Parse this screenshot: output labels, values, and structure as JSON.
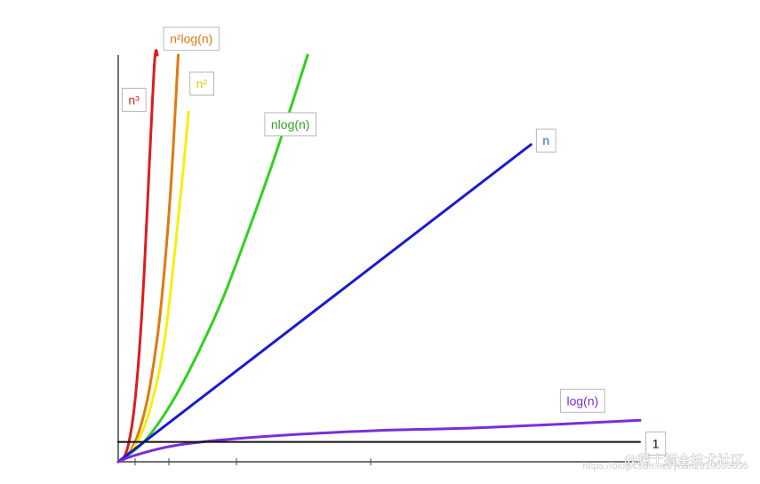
{
  "chart_data": {
    "type": "line",
    "title": "",
    "xlabel": "",
    "ylabel": "",
    "grid": false,
    "legend": "inline-labels",
    "xlim": [
      0,
      100
    ],
    "ylim": [
      0,
      100
    ],
    "series": [
      {
        "name": "n³",
        "color": "#dd1c1c",
        "x": [
          0,
          1,
          2,
          3,
          4,
          5,
          6,
          7,
          7.5
        ],
        "y": [
          0,
          0.8,
          4.5,
          12.5,
          26.5,
          47,
          74,
          99,
          100
        ]
      },
      {
        "name": "n²log(n)",
        "color": "#e07a10",
        "x": [
          0,
          2,
          4,
          6,
          8,
          10,
          11.5
        ],
        "y": [
          0,
          2,
          7.5,
          18,
          36,
          66,
          100
        ]
      },
      {
        "name": "n²",
        "color": "#f5f010",
        "x": [
          0,
          3,
          6,
          9,
          12,
          13.5
        ],
        "y": [
          0,
          3.5,
          12.5,
          31,
          66,
          86
        ]
      },
      {
        "name": "nlog(n)",
        "color": "#2fd21e",
        "x": [
          0,
          5,
          10,
          15,
          20,
          25,
          30,
          36.3
        ],
        "y": [
          0,
          5,
          14,
          26,
          40,
          57,
          75,
          100
        ]
      },
      {
        "name": "n",
        "color": "#1a1ad0",
        "x": [
          0,
          79.1
        ],
        "y": [
          0,
          78
        ]
      },
      {
        "name": "log(n)",
        "color": "#7a2ed8",
        "x": [
          0,
          3,
          10,
          20,
          35,
          50,
          70,
          100
        ],
        "y": [
          0,
          1.5,
          3.8,
          5.4,
          6.8,
          7.7,
          8.4,
          10.2
        ]
      },
      {
        "name": "1",
        "color": "#111111",
        "x": [
          0,
          100
        ],
        "y": [
          4.9,
          4.9
        ]
      }
    ],
    "labels": [
      {
        "text": "n³",
        "color": "#dd1c1c",
        "near_x": 3,
        "near_y": 89
      },
      {
        "text": "n²log(n)",
        "color": "#e07a10",
        "near_x": 14,
        "near_y": 104
      },
      {
        "text": "n²",
        "color": "#d8cf00",
        "near_x": 16,
        "near_y": 93
      },
      {
        "text": "nlog(n)",
        "color": "#2fa51e",
        "near_x": 33,
        "near_y": 83
      },
      {
        "text": "n",
        "color": "#1a6fd0",
        "near_x": 82,
        "near_y": 79
      },
      {
        "text": "log(n)",
        "color": "#7a2ed8",
        "near_x": 89,
        "near_y": 15
      },
      {
        "text": "1",
        "color": "#111111",
        "near_x": 103,
        "near_y": 4.5
      }
    ]
  },
  "watermark": {
    "faint": "https://blog.csdn.net/yuan2019035055",
    "main": "@稀土掘金技术社区"
  }
}
